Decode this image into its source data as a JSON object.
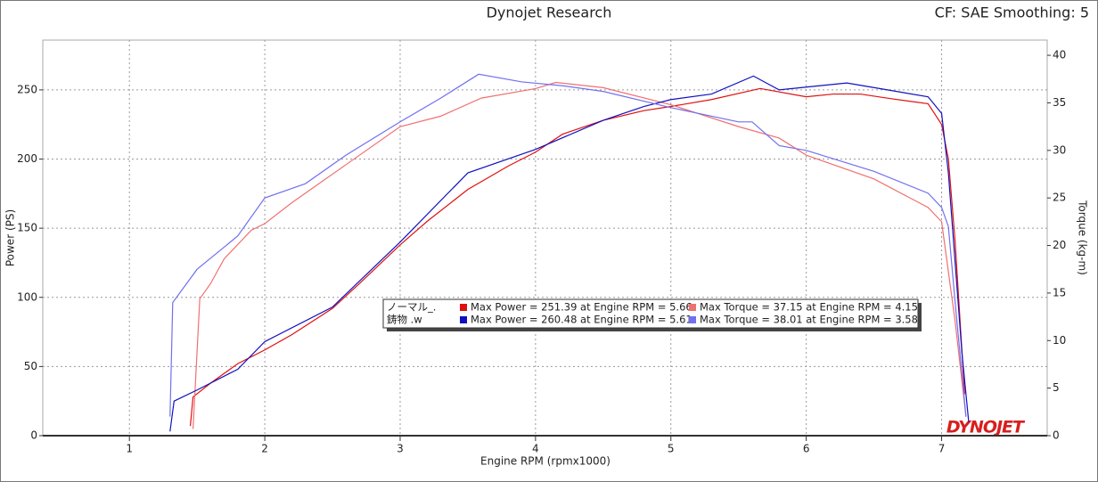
{
  "chart_data": {
    "type": "line",
    "title": "Dynojet Research",
    "subtitle": "CF: SAE Smoothing: 5",
    "x_label": "Engine RPM (rpmx1000)",
    "y_label": "Power (PS)",
    "y2_label": "Torque (kg-m)",
    "logo": "DYNOJET",
    "xlim": [
      0.36,
      7.78
    ],
    "xticks": [
      1,
      2,
      3,
      4,
      5,
      6,
      7
    ],
    "ylim": [
      0,
      286
    ],
    "yticks": [
      0,
      50,
      100,
      150,
      200,
      250
    ],
    "y2lim": [
      0,
      41.6
    ],
    "y2ticks": [
      0,
      5,
      10,
      15,
      20,
      25,
      30,
      35,
      40
    ],
    "grid": true,
    "legend_rows": [
      "ノーマル_.",
      "鋳物 .w"
    ],
    "series": [
      {
        "name": "Max Power = 251.39 at Engine RPM = 5.66",
        "color": "#e01010",
        "axis": "y",
        "x": [
          1.45,
          1.47,
          1.6,
          1.8,
          2.0,
          2.2,
          2.5,
          2.7,
          3.0,
          3.2,
          3.5,
          3.8,
          4.0,
          4.2,
          4.5,
          4.8,
          5.0,
          5.3,
          5.66,
          6.0,
          6.2,
          6.4,
          6.6,
          6.9,
          7.0,
          7.05,
          7.1,
          7.17
        ],
        "values": [
          7,
          28,
          38,
          52,
          62,
          73,
          92,
          110,
          138,
          155,
          178,
          195,
          205,
          218,
          228,
          235,
          238,
          243,
          251,
          245,
          247,
          247,
          244,
          240,
          225,
          200,
          140,
          30
        ]
      },
      {
        "name": "Max Torque = 37.15 at Engine RPM = 4.15",
        "color": "#f07070",
        "axis": "y2",
        "x": [
          1.47,
          1.52,
          1.6,
          1.7,
          1.9,
          2.0,
          2.2,
          2.4,
          2.6,
          3.0,
          3.3,
          3.6,
          4.0,
          4.15,
          4.5,
          5.0,
          5.5,
          5.8,
          6.0,
          6.5,
          6.9,
          7.0,
          7.1,
          7.18
        ],
        "values": [
          0.7,
          14.4,
          16,
          18.6,
          21.6,
          22.3,
          24.5,
          26.5,
          28.5,
          32.5,
          33.6,
          35.5,
          36.5,
          37.15,
          36.6,
          34.8,
          32.5,
          31.3,
          29.5,
          27,
          24,
          22.5,
          12,
          2
        ]
      },
      {
        "name": "Max Power = 260.48 at Engine RPM = 5.61",
        "color": "#1010c0",
        "axis": "y",
        "x": [
          1.3,
          1.33,
          1.5,
          1.8,
          2.0,
          2.5,
          3.0,
          3.5,
          4.0,
          4.5,
          4.8,
          5.0,
          5.3,
          5.61,
          5.8,
          6.0,
          6.3,
          6.6,
          6.9,
          7.0,
          7.05,
          7.15,
          7.2
        ],
        "values": [
          3,
          25,
          33,
          48,
          68,
          93,
          140,
          190,
          207,
          228,
          238,
          243,
          247,
          260,
          250,
          252,
          255,
          250,
          245,
          233,
          190,
          60,
          10
        ]
      },
      {
        "name": "Max Torque = 38.01 at Engine RPM = 3.58",
        "color": "#7070f0",
        "axis": "y2",
        "x": [
          1.3,
          1.32,
          1.5,
          1.8,
          2.0,
          2.3,
          2.6,
          3.0,
          3.3,
          3.58,
          3.9,
          4.2,
          4.5,
          5.0,
          5.5,
          5.6,
          5.8,
          6.0,
          6.5,
          6.9,
          7.0,
          7.05,
          7.1,
          7.18
        ],
        "values": [
          2,
          14,
          17.5,
          21,
          25,
          26.5,
          29.5,
          33,
          35.5,
          38.01,
          37.2,
          36.8,
          36.2,
          34.5,
          33,
          33,
          30.5,
          30,
          27.8,
          25.5,
          24,
          22,
          14,
          2
        ]
      }
    ]
  }
}
